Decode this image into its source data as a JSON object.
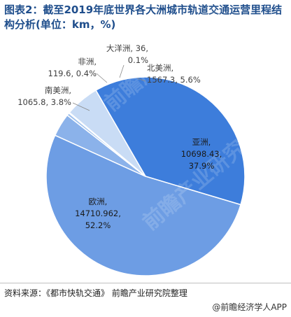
{
  "chart_data": {
    "type": "pie",
    "title": "图表2：截至2019年底世界各大洲城市轨道交通运营里程结构分析(单位：km，%)",
    "slices": [
      {
        "name": "亚洲",
        "value": 10698.43,
        "percent": 37.9,
        "color": "#3d7ddb",
        "label": [
          "亚洲,",
          "10698.43,",
          "37.9%"
        ]
      },
      {
        "name": "欧洲",
        "value": 14710.962,
        "percent": 52.2,
        "color": "#6d9de4",
        "label": [
          "欧洲,",
          "14710.962,",
          "52.2%"
        ]
      },
      {
        "name": "南美洲",
        "value": 1065.8,
        "percent": 3.8,
        "color": "#8bb2ea",
        "label": [
          "南美洲,",
          "1065.8, 3.8%"
        ]
      },
      {
        "name": "非洲",
        "value": 119.6,
        "percent": 0.4,
        "color": "#9ec0ed",
        "label": [
          "非洲,",
          "119.6, 0.4%"
        ]
      },
      {
        "name": "大洋洲",
        "value": 36,
        "percent": 0.1,
        "color": "#b4cef1",
        "label": [
          "大洋洲, 36,",
          "0.1%"
        ]
      },
      {
        "name": "北美洲",
        "value": 1567.3,
        "percent": 5.6,
        "color": "#c9dcf5",
        "label": [
          "北美洲,",
          "1567.3, 5.6%"
        ]
      }
    ]
  },
  "watermark": "前瞻产业研究院",
  "source": "资料来源：《都市快轨交通》 前瞻产业研究院整理",
  "brand": "@前瞻经济学人APP"
}
